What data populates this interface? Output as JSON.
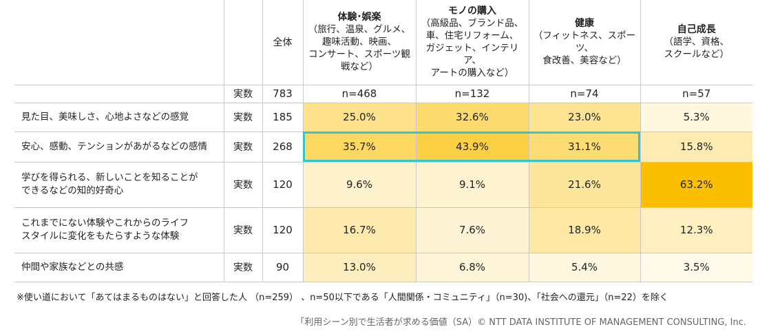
{
  "table": {
    "total_header": "全体",
    "count_label": "実数",
    "categories": [
      {
        "title": "体験･娯楽",
        "sub": "（旅行、温泉、グルメ、\n趣味活動、映画、\nコンサート、スポーツ観\n戦など）"
      },
      {
        "title": "モノの購入",
        "sub": "（高級品、ブランド品、\n車、住宅リフォーム、\nガジェット、インテリア、\nアートの購入など）"
      },
      {
        "title": "健康",
        "sub": "（フィットネス、スポーツ、\n食改善、美容など）"
      },
      {
        "title": "自己成長",
        "sub": "（語学、資格、\nスクールなど）"
      }
    ],
    "n_row": {
      "total": "783",
      "cells": [
        "n=468",
        "n=132",
        "n=74",
        "n=57"
      ]
    },
    "rows": [
      {
        "label": "見た目、美味しさ、心地よさなどの感覚",
        "count": "185",
        "cells": [
          "25.0%",
          "32.6%",
          "23.0%",
          "5.3%"
        ]
      },
      {
        "label": "安心、感動、テンションがあがるなどの感情",
        "count": "268",
        "cells": [
          "35.7%",
          "43.9%",
          "31.1%",
          "15.8%"
        ]
      },
      {
        "label": "学びを得られる、新しいことを知ることが\nできるなどの知的好奇心",
        "count": "120",
        "cells": [
          "9.6%",
          "9.1%",
          "21.6%",
          "63.2%"
        ]
      },
      {
        "label": "これまでにない体験やこれからのライフ\nスタイルに変化をもたらすような体験",
        "count": "120",
        "cells": [
          "16.7%",
          "7.6%",
          "18.9%",
          "12.3%"
        ]
      },
      {
        "label": "仲間や家族などとの共感",
        "count": "90",
        "cells": [
          "13.0%",
          "6.8%",
          "5.4%",
          "3.5%"
        ]
      }
    ]
  },
  "chart_data": {
    "type": "heatmap",
    "columns": [
      "体験･娯楽",
      "モノの購入",
      "健康",
      "自己成長"
    ],
    "rows": [
      "見た目、美味しさ、心地よさなどの感覚",
      "安心、感動、テンションがあがるなどの感情",
      "学びを得られる、新しいことを知ることができるなどの知的好奇心",
      "これまでにない体験やこれからのライフスタイルに変化をもたらすような体験",
      "仲間や家族などとの共感"
    ],
    "values": [
      [
        25.0,
        32.6,
        23.0,
        5.3
      ],
      [
        35.7,
        43.9,
        31.1,
        15.8
      ],
      [
        9.6,
        9.1,
        21.6,
        63.2
      ],
      [
        16.7,
        7.6,
        18.9,
        12.3
      ],
      [
        13.0,
        6.8,
        5.4,
        3.5
      ]
    ],
    "n": [
      468,
      132,
      74,
      57
    ],
    "total_n": 783,
    "row_counts": [
      185,
      268,
      120,
      120,
      90
    ],
    "highlighted_row": 1,
    "colors": {
      "highlight_border": "#33c6cc",
      "scale_low": "#ffffff",
      "scale_high": "#fbbf00"
    }
  },
  "footnote": "※使い道において「あてはまるものはない」と回答した人 （n=259） 、n=50以下である「人間関係・コミュニティ」（n=30)、「社会への還元」（n=22）を除く",
  "credit": "「利用シーン別で生活者が求める価値（SA）© NTT DATA INSTITUTE OF MANAGEMENT CONSULTING, Inc."
}
